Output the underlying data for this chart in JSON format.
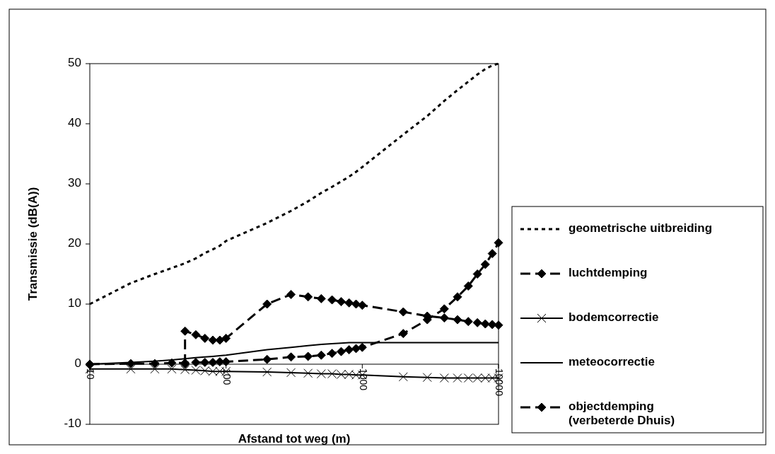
{
  "chart_data": {
    "type": "line",
    "xlabel": "Afstand tot weg (m)",
    "ylabel": "Transmissie (dB(A))",
    "log": "x",
    "xlim": [
      10,
      10000
    ],
    "xticks": [
      10,
      100,
      1000,
      10000
    ],
    "ylim": [
      -10,
      50
    ],
    "yticks": [
      -10,
      0,
      10,
      20,
      30,
      40,
      50
    ],
    "grid": false,
    "legend": "right",
    "x": [
      10,
      20,
      30,
      40,
      50,
      60,
      70,
      80,
      90,
      100,
      200,
      300,
      400,
      500,
      600,
      700,
      800,
      900,
      1000,
      2000,
      3000,
      4000,
      5000,
      6000,
      7000,
      8000,
      9000,
      10000
    ],
    "series": [
      {
        "name": "geometrische uitbreiding",
        "color": "#000000",
        "line_style": "dotted",
        "marker": "none",
        "values": [
          10,
          13.5,
          15,
          16,
          16.8,
          17.6,
          18.5,
          19.1,
          19.7,
          20.5,
          23.5,
          25.5,
          27.1,
          28.5,
          29.5,
          30.4,
          31.2,
          32,
          32.8,
          38.2,
          41.3,
          43.8,
          45.6,
          47,
          48.2,
          49.1,
          49.7,
          50
        ]
      },
      {
        "name": "luchtdemping",
        "color": "#000000",
        "line_style": "dashed",
        "marker": "diamond",
        "values": [
          0,
          0.1,
          0.1,
          0.2,
          0.2,
          0.3,
          0.3,
          0.3,
          0.4,
          0.4,
          0.8,
          1.2,
          1.3,
          1.5,
          1.8,
          2.1,
          2.4,
          2.6,
          2.8,
          5.1,
          7.4,
          9.2,
          11.2,
          13,
          15,
          16.6,
          18.4,
          20.2
        ]
      },
      {
        "name": "bodemcorrectie",
        "color": "#000000",
        "line_style": "solid",
        "marker": "cross",
        "values": [
          -0.8,
          -0.8,
          -0.8,
          -0.8,
          -0.9,
          -1,
          -1.1,
          -1.2,
          -1.2,
          -1.2,
          -1.3,
          -1.4,
          -1.5,
          -1.6,
          -1.6,
          -1.7,
          -1.7,
          -1.8,
          -1.8,
          -2.1,
          -2.2,
          -2.3,
          -2.3,
          -2.3,
          -2.3,
          -2.3,
          -2.3,
          -2.3
        ]
      },
      {
        "name": "meteocorrectie",
        "color": "#000000",
        "line_style": "solid",
        "marker": "none",
        "values": [
          0,
          0.3,
          0.5,
          0.7,
          0.9,
          1.1,
          1.2,
          1.3,
          1.4,
          1.5,
          2.4,
          2.8,
          3.1,
          3.3,
          3.4,
          3.5,
          3.6,
          3.6,
          3.6,
          3.6,
          3.6,
          3.6,
          3.6,
          3.6,
          3.6,
          3.6,
          3.6,
          3.6
        ]
      },
      {
        "name": "objectdemping\n(verbeterde Dhuis)",
        "color": "#000000",
        "line_style": "dashed",
        "marker": "diamond",
        "x": [
          50,
          50,
          60,
          70,
          80,
          90,
          100,
          200,
          300,
          400,
          500,
          600,
          700,
          800,
          900,
          1000,
          2000,
          3000,
          4000,
          5000,
          6000,
          7000,
          8000,
          9000,
          10000
        ],
        "values": [
          0,
          5.5,
          4.9,
          4.3,
          4,
          4,
          4.3,
          10,
          11.6,
          11.2,
          10.9,
          10.7,
          10.4,
          10.2,
          10,
          9.8,
          8.7,
          8,
          7.7,
          7.4,
          7.1,
          6.9,
          6.7,
          6.6,
          6.5
        ]
      }
    ]
  }
}
